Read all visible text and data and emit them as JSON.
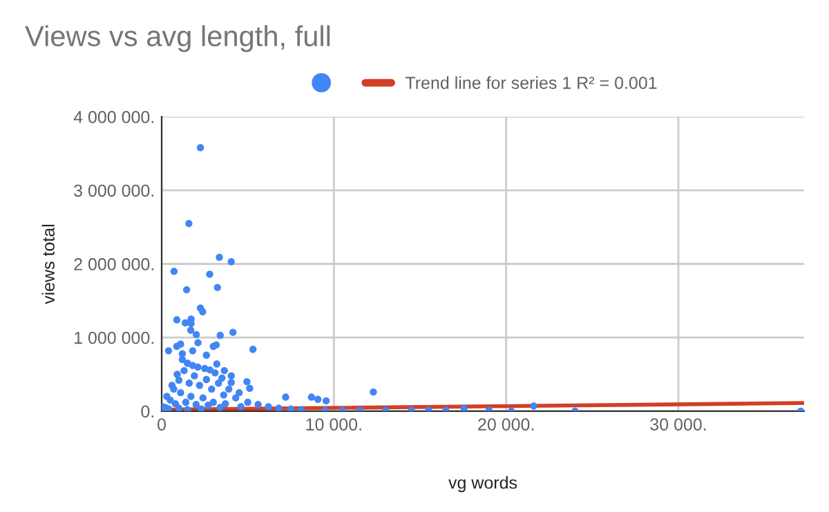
{
  "chart_data": {
    "type": "scatter",
    "title": "Views vs avg length, full",
    "xlabel": "vg words",
    "ylabel": "views total",
    "xlim": [
      0,
      37300
    ],
    "ylim": [
      0,
      4000000
    ],
    "xticks": [
      {
        "value": 0,
        "label": "0"
      },
      {
        "value": 10000,
        "label": "10 000."
      },
      {
        "value": 20000,
        "label": "20 000."
      },
      {
        "value": 30000,
        "label": "30 000."
      }
    ],
    "yticks": [
      {
        "value": 0,
        "label": "0."
      },
      {
        "value": 1000000,
        "label": "1 000 000."
      },
      {
        "value": 2000000,
        "label": "2 000 000."
      },
      {
        "value": 3000000,
        "label": "3 000 000."
      },
      {
        "value": 4000000,
        "label": "4 000 000."
      }
    ],
    "grid": true,
    "legend": "top",
    "series": [
      {
        "marker": "circle",
        "color": "#4285f4",
        "x": [
          2250,
          1580,
          3350,
          4040,
          720,
          2790,
          1450,
          3240,
          2250,
          2380,
          880,
          1370,
          1710,
          1710,
          1690,
          2010,
          3400,
          4140,
          400,
          880,
          5300,
          1100,
          2110,
          3000,
          3170,
          3640,
          4040,
          4040,
          4950,
          5110,
          7200,
          8700,
          9070,
          9550,
          12290,
          21600,
          17560,
          37100,
          1200,
          1500,
          1800,
          2100,
          2500,
          2800,
          3100,
          3500,
          900,
          600,
          300,
          1300,
          1900,
          2600,
          3300,
          3900,
          4500,
          700,
          1000,
          1600,
          2200,
          2900,
          3600,
          4300,
          5000,
          5600,
          6200,
          6800,
          7500,
          8100,
          500,
          1100,
          1700,
          2400,
          3000,
          3700,
          4600,
          200,
          800,
          1400,
          2000,
          2700,
          3400,
          100,
          50,
          400,
          1000,
          1500,
          2300,
          9500,
          10500,
          11500,
          13000,
          14500,
          15500,
          16500,
          19000,
          20300,
          24000,
          1200,
          1800,
          2600,
          3200
        ],
        "values": [
          3580000,
          2550000,
          2090000,
          2030000,
          1900000,
          1860000,
          1650000,
          1680000,
          1400000,
          1350000,
          1240000,
          1200000,
          1250000,
          1190000,
          1100000,
          1040000,
          1030000,
          1070000,
          820000,
          880000,
          840000,
          910000,
          930000,
          880000,
          900000,
          550000,
          480000,
          390000,
          400000,
          310000,
          190000,
          190000,
          160000,
          140000,
          260000,
          70000,
          40000,
          0,
          700000,
          650000,
          620000,
          600000,
          580000,
          560000,
          520000,
          450000,
          500000,
          350000,
          200000,
          550000,
          480000,
          430000,
          380000,
          300000,
          250000,
          300000,
          420000,
          380000,
          350000,
          300000,
          220000,
          180000,
          120000,
          90000,
          60000,
          40000,
          30000,
          20000,
          150000,
          250000,
          200000,
          180000,
          120000,
          100000,
          60000,
          50000,
          100000,
          120000,
          90000,
          80000,
          50000,
          20000,
          60000,
          30000,
          40000,
          20000,
          30000,
          10000,
          10000,
          10000,
          10000,
          10000,
          10000,
          10000,
          10000,
          0,
          0,
          780000,
          820000,
          760000,
          640000
        ]
      },
      {
        "type": "line",
        "name": "Trend line for series 1 R² = 0.001",
        "color": "#d23f27",
        "x": [
          0,
          37300
        ],
        "values": [
          20000,
          110000
        ]
      }
    ]
  }
}
